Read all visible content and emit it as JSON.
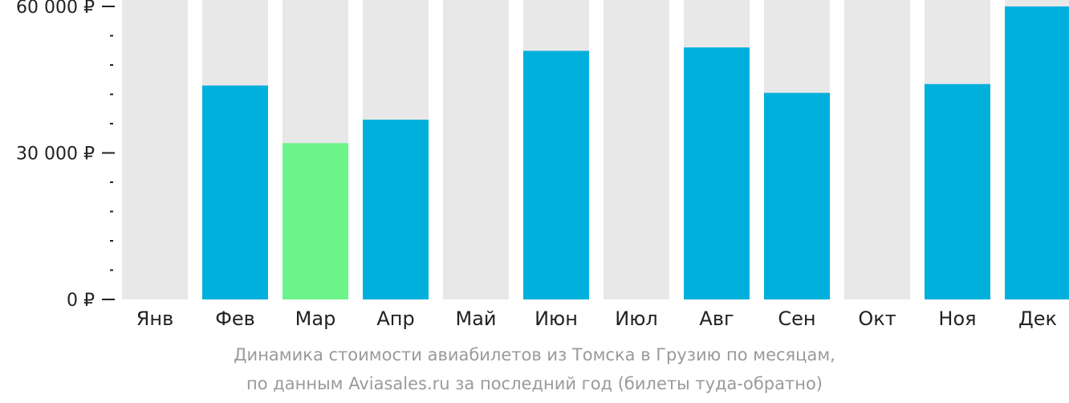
{
  "chart_data": {
    "type": "bar",
    "categories": [
      "Янв",
      "Фев",
      "Мар",
      "Апр",
      "Май",
      "Июн",
      "Июл",
      "Авг",
      "Сен",
      "Окт",
      "Ноя",
      "Дек"
    ],
    "values": [
      null,
      43800,
      32000,
      36800,
      null,
      50900,
      null,
      51600,
      42300,
      null,
      44100,
      60000
    ],
    "ylim": [
      0,
      60000
    ],
    "yticks": [
      {
        "value": 60000,
        "label": "60 000 ₽"
      },
      {
        "value": 30000,
        "label": "30 000 ₽"
      },
      {
        "value": 0,
        "label": "0 ₽"
      }
    ],
    "minor_tick_step": 6000,
    "highlight_category": "Мар",
    "colors": {
      "bar": "#00b0dc",
      "highlight": "#6cf38a",
      "background_column": "#e8e8e8",
      "axis": "#222222"
    },
    "grid": false,
    "legend": "none"
  },
  "caption": {
    "line1": "Динамика стоимости авиабилетов из Томска в Грузию по месяцам,",
    "line2": "по данным Aviasales.ru за последний год (билеты туда-обратно)"
  }
}
